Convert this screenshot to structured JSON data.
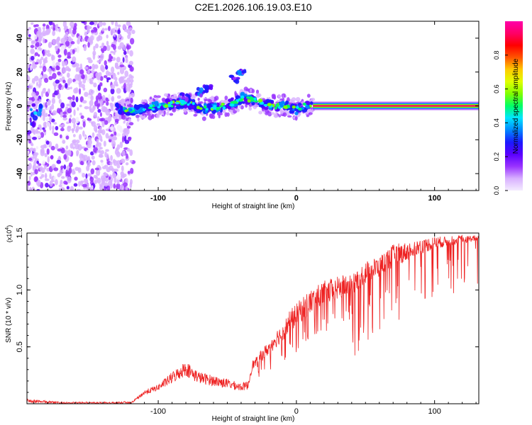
{
  "figure_title": "C2E1.2026.106.19.03.E10",
  "chart_data": [
    {
      "type": "heatmap",
      "title": "C2E1.2026.106.19.03.E10",
      "xlabel": "Height of straight line (km)",
      "ylabel": "Frequency (Hz)",
      "xlim": [
        -195,
        132
      ],
      "ylim": [
        -50,
        50
      ],
      "x_ticks": [
        -100,
        0,
        100
      ],
      "x_tick_labels": [
        "-100",
        "0",
        "100"
      ],
      "y_ticks": [
        -40,
        -20,
        0,
        20,
        40
      ],
      "y_tick_labels": [
        "-40",
        "-20",
        "0",
        "20",
        "40"
      ],
      "colorbar": {
        "label": "Normalized spectral amplitude",
        "range": [
          0,
          1
        ],
        "ticks": [
          0,
          0.2,
          0.4,
          0.6,
          0.8
        ],
        "tick_labels": [
          "0.0",
          "0.2",
          "0.4",
          "0.6",
          "0.8"
        ],
        "colors": [
          "#f4ecff",
          "#d8b0ff",
          "#9933ff",
          "#5a00ff",
          "#1a1aff",
          "#0088ff",
          "#00e5ff",
          "#00ff66",
          "#7fff00",
          "#e0ff00",
          "#ffcc00",
          "#ff5500",
          "#ff0000",
          "#ff0066",
          "#ff00aa"
        ]
      },
      "features": {
        "noise_region_x": [
          -195,
          -118
        ],
        "signal_track_x": [
          -130,
          12
        ],
        "carrier_line": {
          "x_start": 12,
          "x_end": 132,
          "frequency": 0
        },
        "track_points": [
          {
            "x": -128,
            "f": -2
          },
          {
            "x": -120,
            "f": -3
          },
          {
            "x": -110,
            "f": -2
          },
          {
            "x": -100,
            "f": 0
          },
          {
            "x": -90,
            "f": 1
          },
          {
            "x": -82,
            "f": 2
          },
          {
            "x": -75,
            "f": 1
          },
          {
            "x": -68,
            "f": -2
          },
          {
            "x": -60,
            "f": -1
          },
          {
            "x": -52,
            "f": 0
          },
          {
            "x": -45,
            "f": 2
          },
          {
            "x": -38,
            "f": 5
          },
          {
            "x": -30,
            "f": 3
          },
          {
            "x": -22,
            "f": 1
          },
          {
            "x": -15,
            "f": 0
          },
          {
            "x": -8,
            "f": 0
          },
          {
            "x": 0,
            "f": -2
          },
          {
            "x": 6,
            "f": 0
          },
          {
            "x": 12,
            "f": 0
          }
        ],
        "upper_branch_points": [
          {
            "x": -80,
            "f": 5
          },
          {
            "x": -70,
            "f": 8
          },
          {
            "x": -64,
            "f": 10
          },
          {
            "x": -45,
            "f": 16
          },
          {
            "x": -40,
            "f": 20
          }
        ]
      }
    },
    {
      "type": "line",
      "xlabel": "Height of straight line (km)",
      "ylabel": "SNR (10 * v/v)",
      "y_multiplier_label": "(x10",
      "y_multiplier_exponent": "4",
      "y_multiplier_close": ")",
      "xlim": [
        -195,
        132
      ],
      "ylim": [
        0,
        1.5
      ],
      "x_ticks": [
        -100,
        0,
        100
      ],
      "x_tick_labels": [
        "-100",
        "0",
        "100"
      ],
      "y_ticks": [
        0.5,
        1.0,
        1.5
      ],
      "y_tick_labels": [
        "0.5",
        "1.0",
        "1.5"
      ],
      "series": [
        {
          "name": "SNR",
          "color": "#ee2222",
          "x": [
            -195,
            -170,
            -150,
            -130,
            -118,
            -110,
            -100,
            -90,
            -80,
            -75,
            -70,
            -60,
            -50,
            -40,
            -35,
            -32,
            -28,
            -25,
            -20,
            -15,
            -10,
            -5,
            0,
            5,
            10,
            20,
            30,
            40,
            50,
            60,
            70,
            80,
            90,
            100,
            110,
            120,
            132
          ],
          "upper_envelope": [
            0.05,
            0.02,
            0.02,
            0.02,
            0.03,
            0.12,
            0.17,
            0.28,
            0.38,
            0.32,
            0.28,
            0.25,
            0.22,
            0.18,
            0.2,
            0.38,
            0.42,
            0.48,
            0.55,
            0.65,
            0.7,
            0.82,
            0.88,
            0.95,
            1.0,
            1.08,
            1.12,
            1.15,
            1.25,
            1.3,
            1.4,
            1.42,
            1.45,
            1.47,
            1.47,
            1.48,
            1.48
          ],
          "base": [
            0.01,
            0.0,
            0.0,
            0.0,
            0.0,
            0.02,
            0.05,
            0.05,
            0.08,
            0.06,
            0.05,
            0.04,
            0.03,
            0.03,
            0.03,
            0.2,
            0.2,
            0.25,
            0.28,
            0.3,
            0.36,
            0.38,
            0.43,
            0.48,
            0.52,
            0.6,
            0.65,
            0.72,
            0.8,
            0.88,
            0.95,
            1.05,
            1.15,
            1.22,
            1.28,
            1.32,
            1.38
          ],
          "deep_dip_min": 0.5
        }
      ]
    }
  ]
}
